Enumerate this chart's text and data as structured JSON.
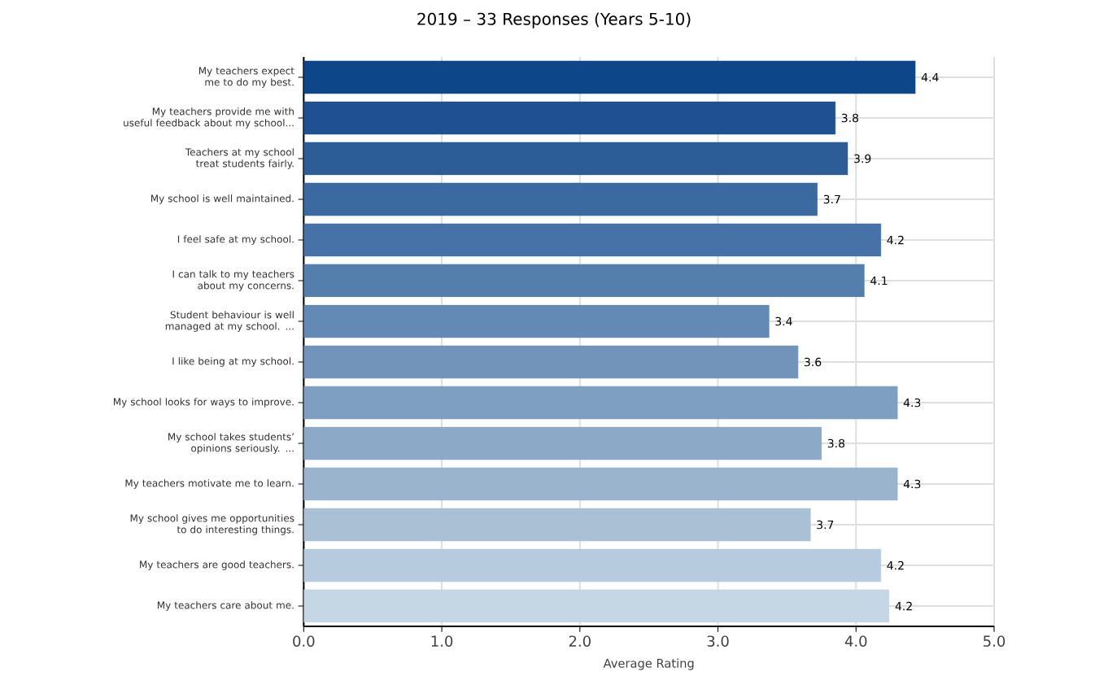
{
  "chart_data": {
    "type": "bar",
    "orientation": "horizontal",
    "title": "2019 – 33 Responses (Years 5-10)",
    "xlabel": "Average Rating",
    "categories": [
      "My teachers expect me to do my best.",
      "My teachers provide me with useful feedback about my school...",
      "Teachers at my school treat students fairly.",
      "My school is well maintained.",
      "I feel safe at my school.",
      "I can talk to my teachers about my concerns.",
      "Student behaviour is well managed at my school. ...",
      "I like being at my school.",
      "My school looks for ways to improve.",
      "My school takes students’ opinions seriously. ...",
      "My teachers motivate me to learn.",
      "My school gives me opportunities to do interesting things.",
      "My teachers are good teachers.",
      "My teachers care about me."
    ],
    "values": [
      4.43,
      3.85,
      3.94,
      3.72,
      4.18,
      4.06,
      3.37,
      3.58,
      4.3,
      3.75,
      4.3,
      3.67,
      4.18,
      4.24
    ],
    "value_labels": [
      "4.4",
      "3.8",
      "3.9",
      "3.7",
      "4.2",
      "4.1",
      "3.4",
      "3.6",
      "4.3",
      "3.8",
      "4.3",
      "3.7",
      "4.2",
      "4.2"
    ],
    "colors": [
      "#0e4789",
      "#1f5192",
      "#2c5d96",
      "#3a6a9f",
      "#4672a7",
      "#547fad",
      "#638ab5",
      "#7294ba",
      "#7f9fc2",
      "#8ca9c8",
      "#9ab4ce",
      "#aac1d5",
      "#b7cbdf",
      "#c5d6e4"
    ],
    "xlim": [
      0,
      5
    ],
    "xticks": [
      {
        "value": 0,
        "label": "0.0"
      },
      {
        "value": 1,
        "label": "1.0"
      },
      {
        "value": 2,
        "label": "2.0"
      },
      {
        "value": 3,
        "label": "3.0"
      },
      {
        "value": 4,
        "label": "4.0"
      },
      {
        "value": 5,
        "label": "5.0"
      }
    ],
    "grid": true
  }
}
